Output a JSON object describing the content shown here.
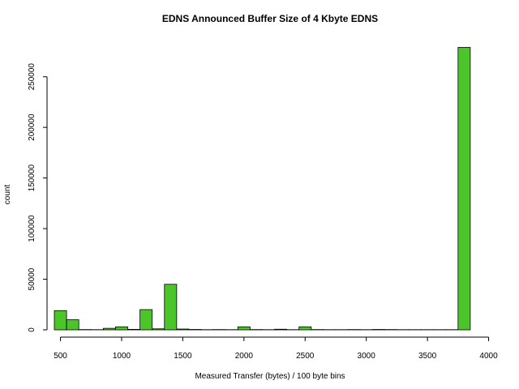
{
  "chart_data": {
    "type": "bar",
    "title": "EDNS Announced Buffer Size of 4 Kbyte EDNS",
    "xlabel": "Measured Transfer (bytes) / 100 byte bins",
    "ylabel": "count",
    "xlim": [
      450,
      3950
    ],
    "ylim": [
      0,
      285000
    ],
    "x_ticks": [
      500,
      1000,
      1500,
      2000,
      2500,
      3000,
      3500,
      4000
    ],
    "y_ticks": [
      0,
      50000,
      100000,
      150000,
      200000,
      250000
    ],
    "bin_width": 100,
    "bars": [
      {
        "x0": 450,
        "x1": 550,
        "value": 19000
      },
      {
        "x0": 550,
        "x1": 650,
        "value": 10000
      },
      {
        "x0": 650,
        "x1": 750,
        "value": 300
      },
      {
        "x0": 750,
        "x1": 850,
        "value": 200
      },
      {
        "x0": 850,
        "x1": 950,
        "value": 1500
      },
      {
        "x0": 950,
        "x1": 1050,
        "value": 3000
      },
      {
        "x0": 1050,
        "x1": 1150,
        "value": 500
      },
      {
        "x0": 1150,
        "x1": 1250,
        "value": 20000
      },
      {
        "x0": 1250,
        "x1": 1350,
        "value": 1000
      },
      {
        "x0": 1350,
        "x1": 1450,
        "value": 45000
      },
      {
        "x0": 1450,
        "x1": 1550,
        "value": 800
      },
      {
        "x0": 1550,
        "x1": 1650,
        "value": 400
      },
      {
        "x0": 1650,
        "x1": 1750,
        "value": 200
      },
      {
        "x0": 1750,
        "x1": 1850,
        "value": 300
      },
      {
        "x0": 1850,
        "x1": 1950,
        "value": 200
      },
      {
        "x0": 1950,
        "x1": 2050,
        "value": 3000
      },
      {
        "x0": 2050,
        "x1": 2150,
        "value": 300
      },
      {
        "x0": 2150,
        "x1": 2250,
        "value": 200
      },
      {
        "x0": 2250,
        "x1": 2350,
        "value": 600
      },
      {
        "x0": 2350,
        "x1": 2450,
        "value": 200
      },
      {
        "x0": 2450,
        "x1": 2550,
        "value": 3000
      },
      {
        "x0": 2550,
        "x1": 2650,
        "value": 300
      },
      {
        "x0": 2650,
        "x1": 2750,
        "value": 200
      },
      {
        "x0": 2750,
        "x1": 2850,
        "value": 200
      },
      {
        "x0": 2850,
        "x1": 2950,
        "value": 300
      },
      {
        "x0": 2950,
        "x1": 3050,
        "value": 200
      },
      {
        "x0": 3050,
        "x1": 3150,
        "value": 400
      },
      {
        "x0": 3150,
        "x1": 3250,
        "value": 300
      },
      {
        "x0": 3250,
        "x1": 3350,
        "value": 200
      },
      {
        "x0": 3350,
        "x1": 3450,
        "value": 200
      },
      {
        "x0": 3450,
        "x1": 3550,
        "value": 200
      },
      {
        "x0": 3550,
        "x1": 3650,
        "value": 200
      },
      {
        "x0": 3650,
        "x1": 3750,
        "value": 200
      },
      {
        "x0": 3750,
        "x1": 3850,
        "value": 279000
      }
    ],
    "color": "#4cc52a",
    "grid": false
  }
}
